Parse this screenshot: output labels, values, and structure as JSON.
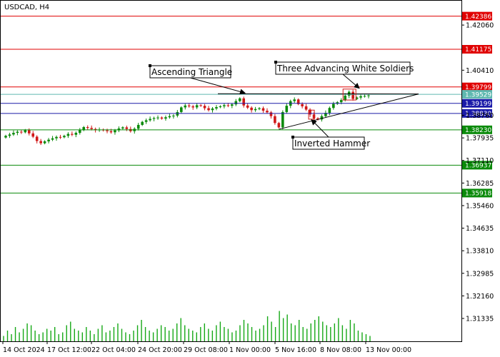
{
  "chart_data": {
    "type": "candlestick",
    "title": "USDCAD, H4",
    "ylim": [
      1.305,
      1.4295
    ],
    "y_ticks": [
      "1.42060",
      "1.40410",
      "1.38760",
      "1.37935",
      "1.37110",
      "1.36285",
      "1.35460",
      "1.34635",
      "1.33810",
      "1.32985",
      "1.32160",
      "1.31335"
    ],
    "y_tick_values": [
      1.4206,
      1.4041,
      1.3876,
      1.37935,
      1.3711,
      1.36285,
      1.3546,
      1.34635,
      1.3381,
      1.32985,
      1.3216,
      1.31335
    ],
    "x_labels": [
      "14 Oct 2024",
      "17 Oct 12:00",
      "22 Oct 04:00",
      "24 Oct 20:00",
      "29 Oct 08:00",
      "1 Nov 00:00",
      "5 Nov 16:00",
      "8 Nov 08:00",
      "13 Nov 00:00"
    ],
    "levels": [
      {
        "value": 1.42386,
        "label": "1.42386",
        "color": "#e00000"
      },
      {
        "value": 1.41175,
        "label": "1.41175",
        "color": "#e00000"
      },
      {
        "value": 1.39799,
        "label": "1.39799",
        "color": "#e00000"
      },
      {
        "value": 1.39529,
        "label": "1.39529",
        "color": "#5fb8b0"
      },
      {
        "value": 1.39199,
        "label": "1.39199",
        "color": "#1a1aa8"
      },
      {
        "value": 1.3883,
        "label": "1.38830",
        "color": "#1a1aa8"
      },
      {
        "value": 1.3823,
        "label": "1.38230",
        "color": "#0a8a0a"
      },
      {
        "value": 1.36937,
        "label": "1.36937",
        "color": "#0a8a0a"
      },
      {
        "value": 1.35918,
        "label": "1.35918",
        "color": "#0a8a0a"
      }
    ],
    "closes": [
      1.3801,
      1.3806,
      1.3812,
      1.3816,
      1.3814,
      1.3822,
      1.381,
      1.3798,
      1.3782,
      1.3774,
      1.3781,
      1.3787,
      1.3792,
      1.3797,
      1.3796,
      1.3801,
      1.3808,
      1.3805,
      1.3812,
      1.3822,
      1.3833,
      1.383,
      1.3826,
      1.3822,
      1.3824,
      1.3821,
      1.3818,
      1.3814,
      1.3821,
      1.3828,
      1.3832,
      1.3826,
      1.3818,
      1.3827,
      1.3841,
      1.3852,
      1.3858,
      1.3863,
      1.3866,
      1.3868,
      1.3864,
      1.3869,
      1.3873,
      1.3875,
      1.3888,
      1.3905,
      1.3912,
      1.3909,
      1.3905,
      1.3913,
      1.3911,
      1.3902,
      1.3895,
      1.3901,
      1.3906,
      1.3909,
      1.3913,
      1.3911,
      1.3916,
      1.3928,
      1.3938,
      1.3912,
      1.3904,
      1.3895,
      1.3899,
      1.3902,
      1.3893,
      1.3887,
      1.3873,
      1.3848,
      1.3832,
      1.3888,
      1.3911,
      1.3928,
      1.3934,
      1.3917,
      1.3909,
      1.3897,
      1.3879,
      1.3865,
      1.3861,
      1.3873,
      1.3885,
      1.3903,
      1.3918,
      1.3924,
      1.3932,
      1.3948,
      1.3962,
      1.3936,
      1.3941,
      1.3946,
      1.3947,
      1.3949
    ],
    "volumes": [
      3,
      6,
      4,
      8,
      5,
      7,
      10,
      9,
      6,
      4,
      5,
      7,
      6,
      8,
      4,
      5,
      9,
      11,
      7,
      6,
      5,
      8,
      6,
      4,
      7,
      9,
      5,
      6,
      8,
      10,
      7,
      5,
      4,
      6,
      9,
      12,
      8,
      6,
      5,
      7,
      9,
      8,
      6,
      7,
      10,
      13,
      9,
      7,
      6,
      5,
      8,
      10,
      7,
      6,
      9,
      11,
      8,
      7,
      5,
      6,
      9,
      12,
      10,
      8,
      6,
      7,
      9,
      14,
      11,
      8,
      17,
      13,
      15,
      10,
      9,
      12,
      8,
      7,
      10,
      12,
      14,
      11,
      9,
      8,
      10,
      13,
      9,
      7,
      12,
      10,
      6,
      5,
      4,
      3
    ],
    "annotations": [
      {
        "text": "Ascending Triangle"
      },
      {
        "text": "Three Advancing White Soldiers"
      },
      {
        "text": "Inverted Hammer"
      }
    ]
  }
}
